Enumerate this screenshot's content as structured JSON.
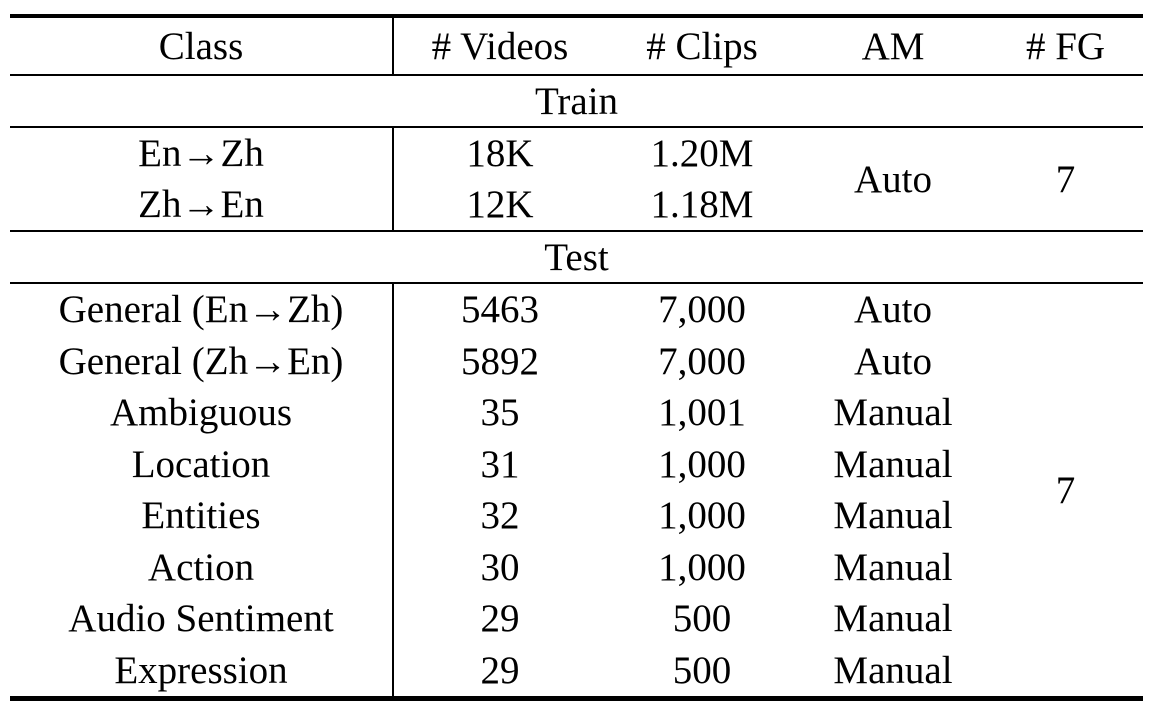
{
  "table": {
    "headers": [
      "Class",
      "# Videos",
      "# Clips",
      "AM",
      "# FG"
    ],
    "sections": [
      {
        "label": "Train",
        "rows": [
          {
            "class": "En→Zh",
            "videos": "18K",
            "clips": "1.20M"
          },
          {
            "class": "Zh→En",
            "videos": "12K",
            "clips": "1.18M"
          }
        ],
        "am": "Auto",
        "fg": "7"
      },
      {
        "label": "Test",
        "rows": [
          {
            "class": "General (En→Zh)",
            "videos": "5463",
            "clips": "7,000",
            "am": "Auto"
          },
          {
            "class": "General (Zh→En)",
            "videos": "5892",
            "clips": "7,000",
            "am": "Auto"
          },
          {
            "class": "Ambiguous",
            "videos": "35",
            "clips": "1,001",
            "am": "Manual"
          },
          {
            "class": "Location",
            "videos": "31",
            "clips": "1,000",
            "am": "Manual"
          },
          {
            "class": "Entities",
            "videos": "32",
            "clips": "1,000",
            "am": "Manual"
          },
          {
            "class": "Action",
            "videos": "30",
            "clips": "1,000",
            "am": "Manual"
          },
          {
            "class": "Audio Sentiment",
            "videos": "29",
            "clips": "500",
            "am": "Manual"
          },
          {
            "class": "Expression",
            "videos": "29",
            "clips": "500",
            "am": "Manual"
          }
        ],
        "fg": "7"
      }
    ]
  }
}
